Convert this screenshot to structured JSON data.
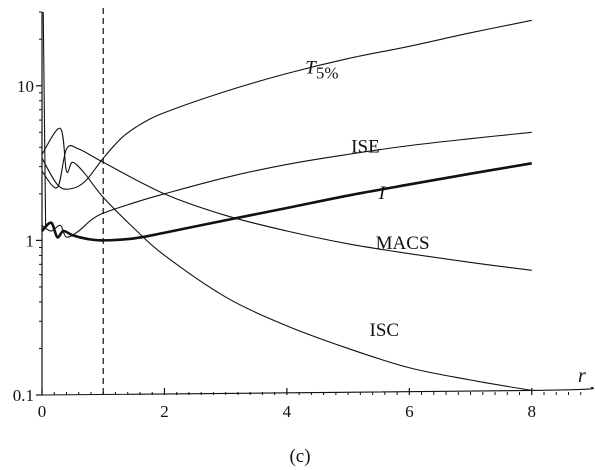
{
  "chart_data": {
    "type": "line",
    "caption": "(c)",
    "xlabel": "r",
    "ylabel": "",
    "xlim": [
      0,
      9
    ],
    "ylim": [
      0.1,
      30
    ],
    "yscale": "log",
    "grid": false,
    "legend": "none",
    "x_ticks": [
      0,
      2,
      4,
      6,
      8
    ],
    "y_ticks": [
      0.1,
      1,
      10
    ],
    "x_tick_labels": [
      "0",
      "2",
      "4",
      "6",
      "8"
    ],
    "y_tick_labels": [
      "0.1",
      "1",
      "10"
    ],
    "reference_line": {
      "x": 1,
      "style": "dashed"
    },
    "series": [
      {
        "name": "T5%",
        "label_position": [
          4.3,
          12
        ],
        "points": [
          [
            0,
            3.4
          ],
          [
            0.25,
            2.3
          ],
          [
            0.45,
            2.15
          ],
          [
            0.7,
            2.4
          ],
          [
            1,
            3.4
          ],
          [
            1.3,
            4.6
          ],
          [
            1.6,
            5.6
          ],
          [
            2,
            6.7
          ],
          [
            3,
            9.2
          ],
          [
            4,
            12
          ],
          [
            5,
            15
          ],
          [
            6,
            18
          ],
          [
            7,
            22
          ],
          [
            8,
            26.5
          ]
        ]
      },
      {
        "name": "ISE",
        "label_position": [
          5.05,
          3.7
        ],
        "points": [
          [
            0,
            1.25
          ],
          [
            0.15,
            1.15
          ],
          [
            0.3,
            1.25
          ],
          [
            0.4,
            1.05
          ],
          [
            0.6,
            1.15
          ],
          [
            0.8,
            1.35
          ],
          [
            1,
            1.5
          ],
          [
            1.5,
            1.75
          ],
          [
            2,
            2
          ],
          [
            3,
            2.55
          ],
          [
            4,
            3.1
          ],
          [
            5,
            3.6
          ],
          [
            6,
            4.1
          ],
          [
            7,
            4.55
          ],
          [
            8,
            5
          ]
        ]
      },
      {
        "name": "I",
        "label_position": [
          5.5,
          1.85
        ],
        "bold": true,
        "points": [
          [
            0,
            1.15
          ],
          [
            0.15,
            1.3
          ],
          [
            0.25,
            1.05
          ],
          [
            0.35,
            1.15
          ],
          [
            0.5,
            1.08
          ],
          [
            0.75,
            1.02
          ],
          [
            1,
            1
          ],
          [
            1.5,
            1.03
          ],
          [
            2,
            1.12
          ],
          [
            3,
            1.35
          ],
          [
            4,
            1.62
          ],
          [
            5,
            1.95
          ],
          [
            6,
            2.3
          ],
          [
            7,
            2.7
          ],
          [
            8,
            3.15
          ]
        ]
      },
      {
        "name": "MACS",
        "label_position": [
          5.45,
          0.88
        ],
        "points": [
          [
            0,
            2.8
          ],
          [
            0.25,
            2.2
          ],
          [
            0.4,
            3.9
          ],
          [
            0.6,
            3.9
          ],
          [
            1,
            3.2
          ],
          [
            2,
            2
          ],
          [
            3,
            1.45
          ],
          [
            4,
            1.15
          ],
          [
            5,
            0.95
          ],
          [
            6,
            0.82
          ],
          [
            7,
            0.72
          ],
          [
            8,
            0.64
          ]
        ]
      },
      {
        "name": "ISC",
        "label_position": [
          5.35,
          0.24
        ],
        "points": [
          [
            0,
            3.6
          ],
          [
            0.3,
            5.3
          ],
          [
            0.4,
            2.8
          ],
          [
            0.5,
            3.2
          ],
          [
            0.7,
            2.7
          ],
          [
            1,
            1.9
          ],
          [
            1.5,
            1.2
          ],
          [
            2,
            0.8
          ],
          [
            3,
            0.43
          ],
          [
            4,
            0.28
          ],
          [
            5,
            0.2
          ],
          [
            6,
            0.15
          ],
          [
            7,
            0.125
          ],
          [
            8,
            0.107
          ]
        ]
      },
      {
        "name": "",
        "points": [
          [
            0,
            0.1
          ],
          [
            8,
            0.107
          ],
          [
            9,
            0.112
          ]
        ]
      },
      {
        "name": "",
        "points": [
          [
            0.02,
            30
          ],
          [
            0.06,
            1.2
          ]
        ]
      }
    ]
  }
}
